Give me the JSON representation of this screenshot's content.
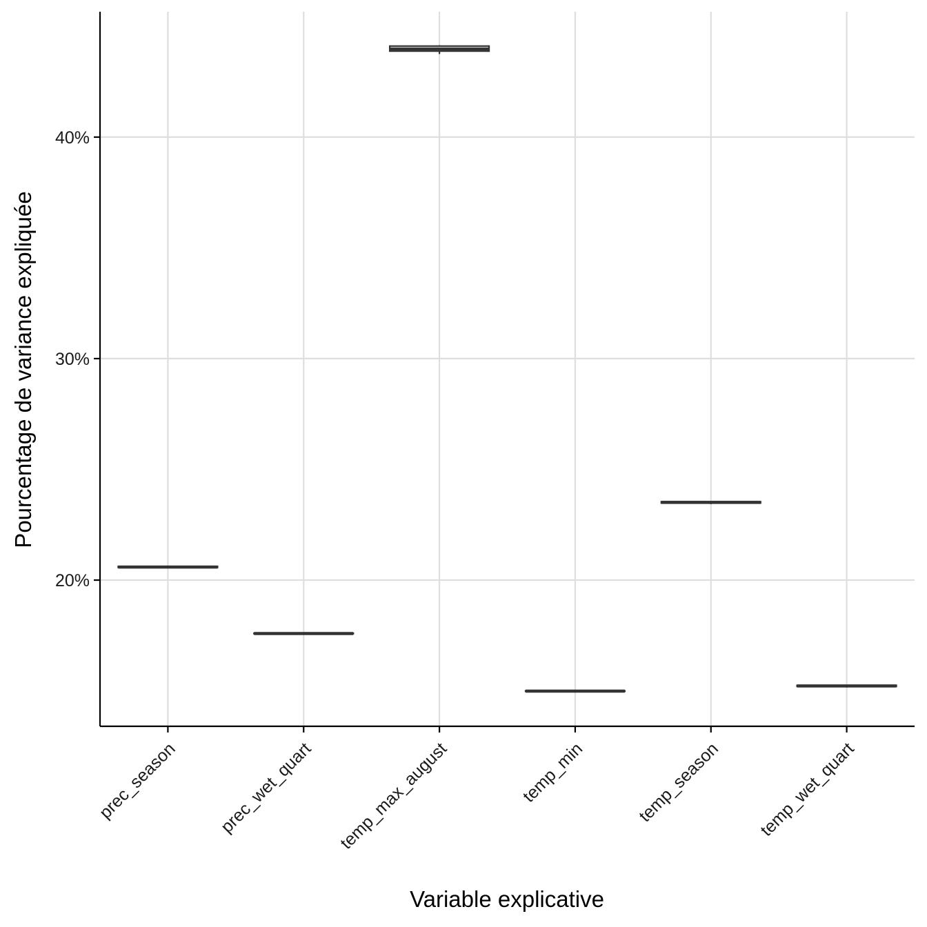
{
  "chart_data": {
    "type": "box",
    "title": "",
    "xlabel": "Variable explicative",
    "ylabel": "Pourcentage de variance expliquée",
    "ylim": [
      0.134,
      0.4566
    ],
    "yticks": [
      0.2,
      0.3,
      0.4
    ],
    "ytick_labels": [
      "20%",
      "30%",
      "40%"
    ],
    "grid": true,
    "categories": [
      "prec_season",
      "prec_wet_quart",
      "temp_max_august",
      "temp_min",
      "temp_season",
      "temp_wet_quart"
    ],
    "boxes": [
      {
        "category": "prec_season",
        "min": 0.2055,
        "q1": 0.2057,
        "median": 0.2059,
        "q3": 0.2062,
        "max": 0.2064
      },
      {
        "category": "prec_wet_quart",
        "min": 0.1757,
        "q1": 0.1758,
        "median": 0.1759,
        "q3": 0.176,
        "max": 0.1761
      },
      {
        "category": "temp_max_august",
        "min": 0.4375,
        "q1": 0.4388,
        "median": 0.4398,
        "q3": 0.4411,
        "max": 0.4415
      },
      {
        "category": "temp_min",
        "min": 0.1497,
        "q1": 0.1498,
        "median": 0.1499,
        "q3": 0.15,
        "max": 0.1501
      },
      {
        "category": "temp_season",
        "min": 0.2343,
        "q1": 0.2348,
        "median": 0.2351,
        "q3": 0.2354,
        "max": 0.2357
      },
      {
        "category": "temp_wet_quart",
        "min": 0.1515,
        "q1": 0.152,
        "median": 0.1522,
        "q3": 0.1525,
        "max": 0.1528
      }
    ]
  }
}
